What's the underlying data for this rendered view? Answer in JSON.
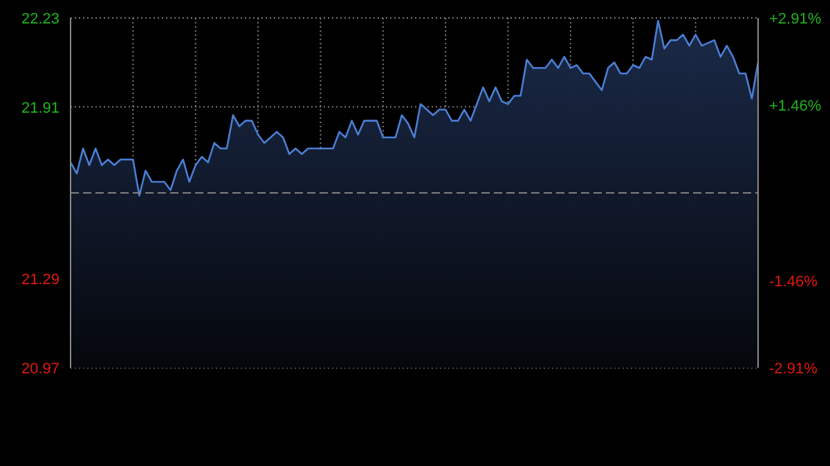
{
  "chart_data": {
    "type": "area",
    "tick_labels": "y",
    "grid": true,
    "marker": "none",
    "line_style": "solid",
    "categories": [
      null,
      null,
      null,
      null,
      null,
      null,
      null,
      null,
      null,
      null,
      null,
      null,
      null,
      null,
      null,
      null,
      null,
      null,
      null,
      null,
      null,
      null,
      null,
      null,
      null,
      null,
      null,
      null,
      null,
      null,
      null,
      null,
      null,
      null,
      null,
      null,
      null,
      null,
      null,
      null,
      null,
      null,
      null,
      null,
      null,
      null,
      null,
      null,
      null,
      null,
      null,
      null,
      null,
      null,
      null,
      null,
      null,
      null,
      null,
      null,
      null,
      null,
      null,
      null,
      null,
      null,
      null,
      null,
      null,
      null,
      null,
      null,
      null,
      null,
      null,
      null,
      null,
      null,
      null,
      null,
      null,
      null,
      null,
      null,
      null,
      null,
      null,
      null,
      null,
      null,
      null,
      null,
      null,
      null,
      null,
      null,
      null,
      null,
      null,
      null,
      null,
      null,
      null,
      null,
      null,
      null,
      null,
      null,
      null,
      null,
      null
    ],
    "ylim": [
      20.97,
      22.23
    ],
    "yticks": [
      20.97,
      21.29,
      21.91,
      22.23
    ],
    "y2lim": [
      -2.91,
      2.91
    ],
    "y2ticks": [
      {
        "value": -2.91,
        "label": "-2.91%"
      },
      {
        "value": -1.46,
        "label": "-1.46%"
      },
      {
        "value": 1.46,
        "label": "+1.46%"
      },
      {
        "value": 2.91,
        "label": "+2.91%"
      }
    ],
    "ref_lines": [
      {
        "axis": "y",
        "value": 21.6,
        "color": "#808080",
        "line_style": "dashed"
      }
    ],
    "series": [
      {
        "color": "#4a7fd4",
        "values": [
          21.71,
          21.67,
          21.76,
          21.7,
          21.76,
          21.7,
          21.72,
          21.7,
          21.72,
          21.72,
          21.72,
          21.59,
          21.68,
          21.64,
          21.64,
          21.64,
          21.61,
          21.68,
          21.72,
          21.64,
          21.7,
          21.73,
          21.71,
          21.78,
          21.76,
          21.76,
          21.88,
          21.84,
          21.86,
          21.86,
          21.81,
          21.78,
          21.8,
          21.82,
          21.8,
          21.74,
          21.76,
          21.74,
          21.76,
          21.76,
          21.76,
          21.76,
          21.76,
          21.82,
          21.8,
          21.86,
          21.81,
          21.86,
          21.86,
          21.86,
          21.8,
          21.8,
          21.8,
          21.88,
          21.85,
          21.8,
          21.92,
          21.9,
          21.88,
          21.9,
          21.9,
          21.86,
          21.86,
          21.9,
          21.86,
          21.92,
          21.98,
          21.93,
          21.98,
          21.93,
          21.92,
          21.95,
          21.95,
          22.08,
          22.05,
          22.05,
          22.05,
          22.08,
          22.05,
          22.09,
          22.05,
          22.06,
          22.03,
          22.03,
          22.0,
          21.97,
          22.05,
          22.07,
          22.03,
          22.03,
          22.06,
          22.05,
          22.09,
          22.08,
          22.22,
          22.12,
          22.15,
          22.15,
          22.17,
          22.13,
          22.17,
          22.13,
          22.14,
          22.15,
          22.09,
          22.13,
          22.09,
          22.03,
          22.03,
          21.94,
          22.07
        ]
      }
    ]
  }
}
